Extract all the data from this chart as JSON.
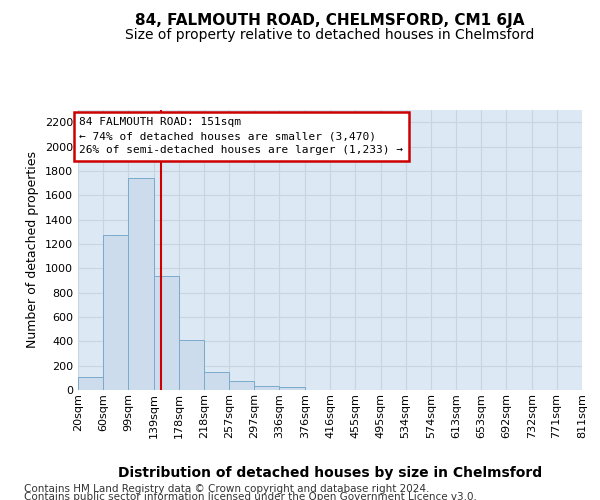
{
  "title": "84, FALMOUTH ROAD, CHELMSFORD, CM1 6JA",
  "subtitle": "Size of property relative to detached houses in Chelmsford",
  "xlabel": "Distribution of detached houses by size in Chelmsford",
  "ylabel": "Number of detached properties",
  "footer_line1": "Contains HM Land Registry data © Crown copyright and database right 2024.",
  "footer_line2": "Contains public sector information licensed under the Open Government Licence v3.0.",
  "annotation_line1": "84 FALMOUTH ROAD: 151sqm",
  "annotation_line2": "← 74% of detached houses are smaller (3,470)",
  "annotation_line3": "26% of semi-detached houses are larger (1,233) →",
  "bar_color": "#ccdcec",
  "bar_edge_color": "#7aaaca",
  "grid_color": "#c8d4e0",
  "red_line_color": "#cc0000",
  "red_line_x": 151,
  "annotation_box_facecolor": "#ffffff",
  "annotation_box_edgecolor": "#cc0000",
  "bins": [
    20,
    60,
    99,
    139,
    178,
    218,
    257,
    297,
    336,
    376,
    416,
    455,
    495,
    534,
    574,
    613,
    653,
    692,
    732,
    771,
    811
  ],
  "bar_heights": [
    110,
    1270,
    1740,
    940,
    410,
    150,
    75,
    35,
    25,
    0,
    0,
    0,
    0,
    0,
    0,
    0,
    0,
    0,
    0,
    0
  ],
  "ylim": [
    0,
    2300
  ],
  "yticks": [
    0,
    200,
    400,
    600,
    800,
    1000,
    1200,
    1400,
    1600,
    1800,
    2000,
    2200
  ],
  "fig_background_color": "#ffffff",
  "plot_background_color": "#dce8f4",
  "title_fontsize": 11,
  "subtitle_fontsize": 10,
  "xlabel_fontsize": 10,
  "ylabel_fontsize": 9,
  "tick_fontsize": 8,
  "footer_fontsize": 7.5,
  "annotation_fontsize": 8
}
